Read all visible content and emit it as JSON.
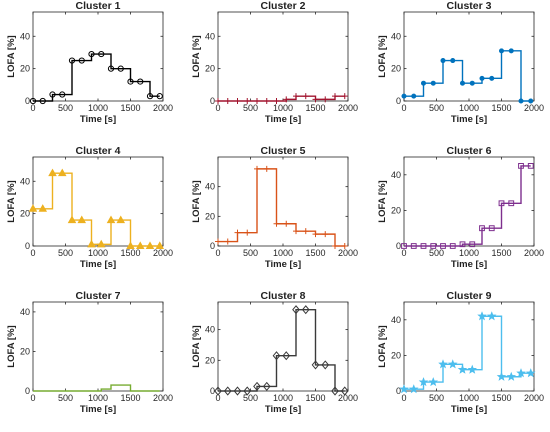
{
  "chart_data": [
    {
      "type": "line",
      "title": "Cluster 1",
      "xlabel": "Time [s]",
      "ylabel": "LOFA [%]",
      "xlim": [
        0,
        2000
      ],
      "ylim": [
        0,
        55
      ],
      "xticks": [
        0,
        500,
        1000,
        1500,
        2000
      ],
      "yticks": [
        0,
        20,
        40
      ],
      "grid": false,
      "color": "#000000",
      "marker": "circle",
      "x": [
        0,
        150,
        300,
        450,
        600,
        750,
        900,
        1050,
        1200,
        1350,
        1500,
        1650,
        1800,
        1950
      ],
      "values": [
        0,
        0,
        4,
        4,
        25,
        25,
        29,
        29,
        20,
        20,
        12,
        12,
        3,
        3
      ]
    },
    {
      "type": "line",
      "title": "Cluster 2",
      "xlabel": "Time [s]",
      "ylabel": "LOFA [%]",
      "xlim": [
        0,
        2000
      ],
      "ylim": [
        0,
        55
      ],
      "xticks": [
        0,
        500,
        1000,
        1500,
        2000
      ],
      "yticks": [
        0,
        20,
        40
      ],
      "grid": false,
      "color": "#A2142F",
      "marker": "plus",
      "x": [
        0,
        150,
        300,
        450,
        600,
        750,
        900,
        1050,
        1200,
        1350,
        1500,
        1650,
        1800,
        1950
      ],
      "values": [
        0,
        0,
        0,
        0,
        0,
        0,
        0,
        1,
        3,
        3,
        1,
        1,
        3,
        3
      ]
    },
    {
      "type": "line",
      "title": "Cluster 3",
      "xlabel": "Time [s]",
      "ylabel": "LOFA [%]",
      "xlim": [
        0,
        2000
      ],
      "ylim": [
        0,
        55
      ],
      "xticks": [
        0,
        500,
        1000,
        1500,
        2000
      ],
      "yticks": [
        0,
        20,
        40
      ],
      "grid": false,
      "color": "#0072BD",
      "marker": "dot",
      "x": [
        0,
        150,
        300,
        450,
        600,
        750,
        900,
        1050,
        1200,
        1350,
        1500,
        1650,
        1800,
        1950
      ],
      "values": [
        3,
        3,
        11,
        11,
        25,
        25,
        11,
        11,
        14,
        14,
        31,
        31,
        0,
        0
      ]
    },
    {
      "type": "line",
      "title": "Cluster 4",
      "xlabel": "Time [s]",
      "ylabel": "LOFA [%]",
      "xlim": [
        0,
        2000
      ],
      "ylim": [
        0,
        55
      ],
      "xticks": [
        0,
        500,
        1000,
        1500,
        2000
      ],
      "yticks": [
        0,
        20,
        40
      ],
      "grid": false,
      "color": "#EDB120",
      "marker": "triangle",
      "x": [
        0,
        150,
        300,
        450,
        600,
        750,
        900,
        1050,
        1200,
        1350,
        1500,
        1650,
        1800,
        1950
      ],
      "values": [
        23,
        23,
        45,
        45,
        16,
        16,
        1,
        1,
        16,
        16,
        0,
        0,
        0,
        0
      ]
    },
    {
      "type": "line",
      "title": "Cluster 5",
      "xlabel": "Time [s]",
      "ylabel": "LOFA [%]",
      "xlim": [
        0,
        2000
      ],
      "ylim": [
        0,
        60
      ],
      "xticks": [
        0,
        500,
        1000,
        1500,
        2000
      ],
      "yticks": [
        0,
        20,
        40
      ],
      "grid": false,
      "color": "#D95319",
      "marker": "plus",
      "x": [
        0,
        150,
        300,
        450,
        600,
        750,
        900,
        1050,
        1200,
        1350,
        1500,
        1650,
        1800,
        1950
      ],
      "values": [
        3,
        3,
        9,
        9,
        52,
        52,
        15,
        15,
        10,
        10,
        8,
        8,
        0,
        0
      ]
    },
    {
      "type": "line",
      "title": "Cluster 6",
      "xlabel": "Time [s]",
      "ylabel": "LOFA [%]",
      "xlim": [
        0,
        2000
      ],
      "ylim": [
        0,
        50
      ],
      "xticks": [
        0,
        500,
        1000,
        1500,
        2000
      ],
      "yticks": [
        0,
        20,
        40
      ],
      "grid": false,
      "color": "#7E2F8E",
      "marker": "square",
      "x": [
        0,
        150,
        300,
        450,
        600,
        750,
        900,
        1050,
        1200,
        1350,
        1500,
        1650,
        1800,
        1950
      ],
      "values": [
        0,
        0,
        0,
        0,
        0,
        0,
        1,
        1,
        10,
        10,
        24,
        24,
        45,
        45
      ]
    },
    {
      "type": "line",
      "title": "Cluster 7",
      "xlabel": "Time [s]",
      "ylabel": "LOFA [%]",
      "xlim": [
        0,
        2000
      ],
      "ylim": [
        0,
        45
      ],
      "xticks": [
        0,
        500,
        1000,
        1500,
        2000
      ],
      "yticks": [
        0,
        20,
        40
      ],
      "grid": false,
      "color": "#77AC30",
      "marker": "none",
      "x": [
        0,
        150,
        300,
        450,
        600,
        750,
        900,
        1050,
        1200,
        1350,
        1500,
        1650,
        1800,
        1950
      ],
      "values": [
        0,
        0,
        0,
        0,
        0,
        0,
        0,
        1,
        3,
        3,
        0,
        0,
        0,
        0
      ]
    },
    {
      "type": "line",
      "title": "Cluster 8",
      "xlabel": "Time [s]",
      "ylabel": "LOFA [%]",
      "xlim": [
        0,
        2000
      ],
      "ylim": [
        0,
        58
      ],
      "xticks": [
        0,
        500,
        1000,
        1500,
        2000
      ],
      "yticks": [
        0,
        20,
        40
      ],
      "grid": false,
      "color": "#3a3a3a",
      "marker": "diamond",
      "x": [
        0,
        150,
        300,
        450,
        600,
        750,
        900,
        1050,
        1200,
        1350,
        1500,
        1650,
        1800,
        1950
      ],
      "values": [
        0,
        0,
        0,
        0,
        3,
        3,
        23,
        23,
        53,
        53,
        17,
        17,
        0,
        0
      ]
    },
    {
      "type": "line",
      "title": "Cluster 9",
      "xlabel": "Time [s]",
      "ylabel": "LOFA [%]",
      "xlim": [
        0,
        2000
      ],
      "ylim": [
        0,
        50
      ],
      "xticks": [
        0,
        500,
        1000,
        1500,
        2000
      ],
      "yticks": [
        0,
        20,
        40
      ],
      "grid": false,
      "color": "#4DBEEE",
      "marker": "star",
      "x": [
        0,
        150,
        300,
        450,
        600,
        750,
        900,
        1050,
        1200,
        1350,
        1500,
        1650,
        1800,
        1950
      ],
      "values": [
        1,
        1,
        5,
        5,
        15,
        15,
        12,
        12,
        42,
        42,
        8,
        8,
        10,
        10
      ]
    }
  ]
}
